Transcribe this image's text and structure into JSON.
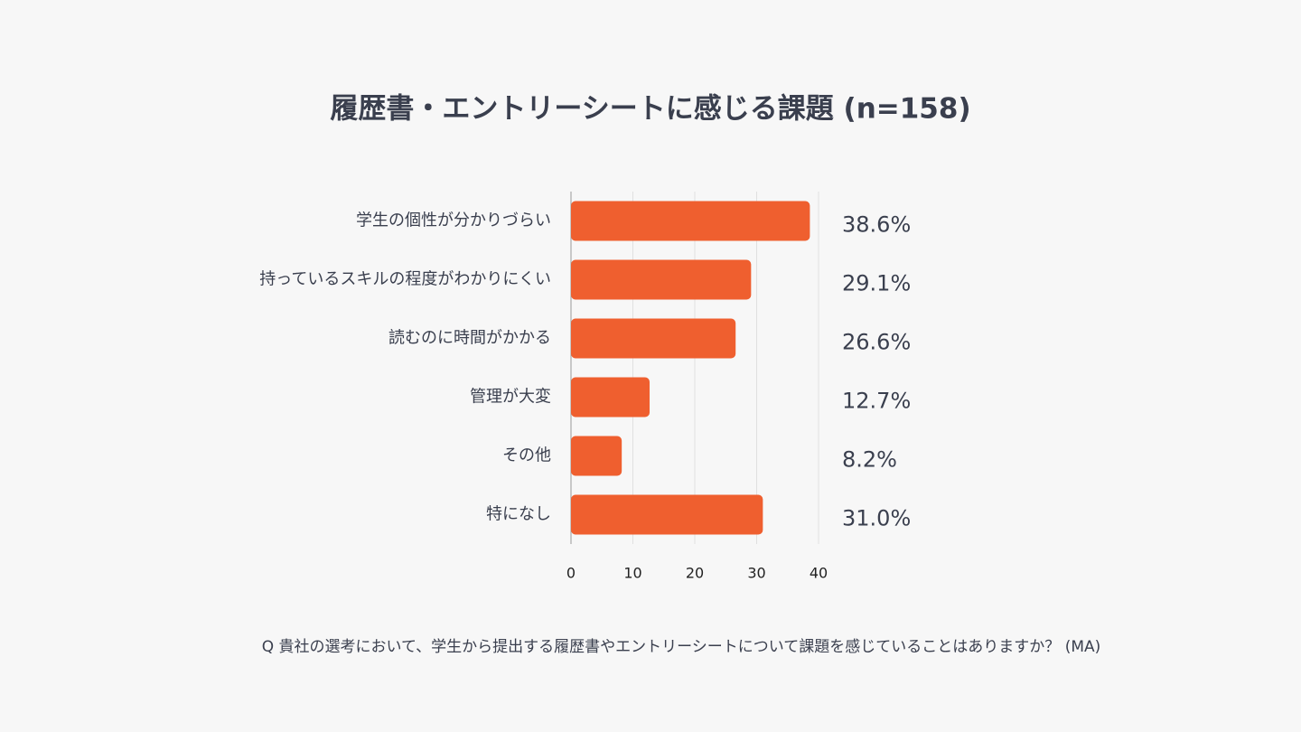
{
  "chart_data": {
    "type": "bar",
    "orientation": "horizontal",
    "title": "履歴書・エントリーシートに感じる課題 (n=158)",
    "categories": [
      "学生の個性が分かりづらい",
      "持っているスキルの程度がわかりにくい",
      "読むのに時間がかかる",
      "管理が大変",
      "その他",
      "特になし"
    ],
    "values": [
      38.6,
      29.1,
      26.6,
      12.7,
      8.2,
      31.0
    ],
    "value_labels": [
      "38.6%",
      "29.1%",
      "26.6%",
      "12.7%",
      "8.2%",
      "31.0%"
    ],
    "color": "#ef5f2f",
    "xlim": [
      0,
      40
    ],
    "xticks": [
      0,
      10,
      20,
      30,
      40
    ],
    "grid": true,
    "caption": "Q 貴社の選考において、学生から提出する履歴書やエントリーシートについて課題を感じていることはありますか？ (MA)"
  }
}
